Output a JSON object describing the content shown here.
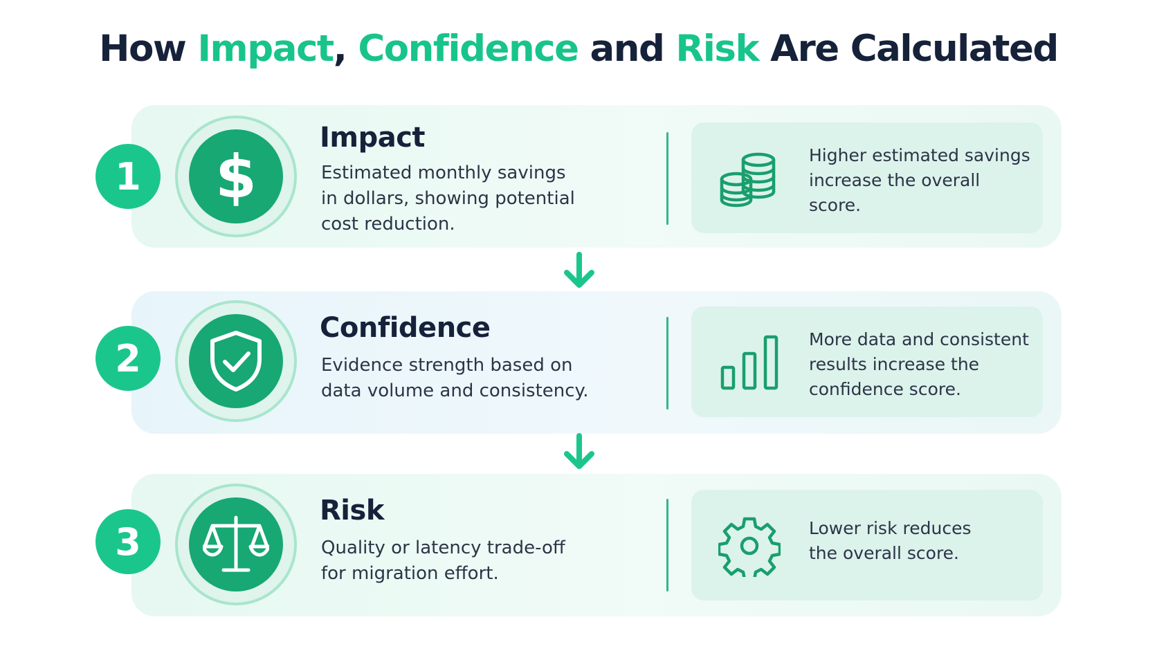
{
  "title": {
    "part1": "How ",
    "impact": "Impact",
    "sep1": ", ",
    "confidence": "Confidence",
    "sep2": " and ",
    "risk": "Risk",
    "part2": " Are Calculated"
  },
  "steps": [
    {
      "number": "1",
      "icon": "dollar-icon",
      "heading": "Impact",
      "description": [
        "Estimated monthly savings",
        "in dollars, showing potential",
        "cost reduction."
      ],
      "info_icon": "coins-stack-icon",
      "info_text": [
        "Higher estimated savings",
        "increase the overall",
        "score."
      ]
    },
    {
      "number": "2",
      "icon": "shield-check-icon",
      "heading": "Confidence",
      "description": [
        "Evidence strength based on",
        "data volume and consistency."
      ],
      "info_icon": "bar-chart-icon",
      "info_text": [
        "More data and consistent",
        "results increase the",
        "confidence score."
      ]
    },
    {
      "number": "3",
      "icon": "balance-scale-icon",
      "heading": "Risk",
      "description": [
        "Quality or latency trade-off",
        "for migration effort."
      ],
      "info_icon": "gear-icon",
      "info_text": [
        "Lower risk reduces",
        "the overall score."
      ]
    }
  ],
  "colors": {
    "accent": "#18c48b",
    "badge_fill": "#17a873",
    "icon_stroke": "#1a9e6e",
    "heading": "#16213a"
  }
}
